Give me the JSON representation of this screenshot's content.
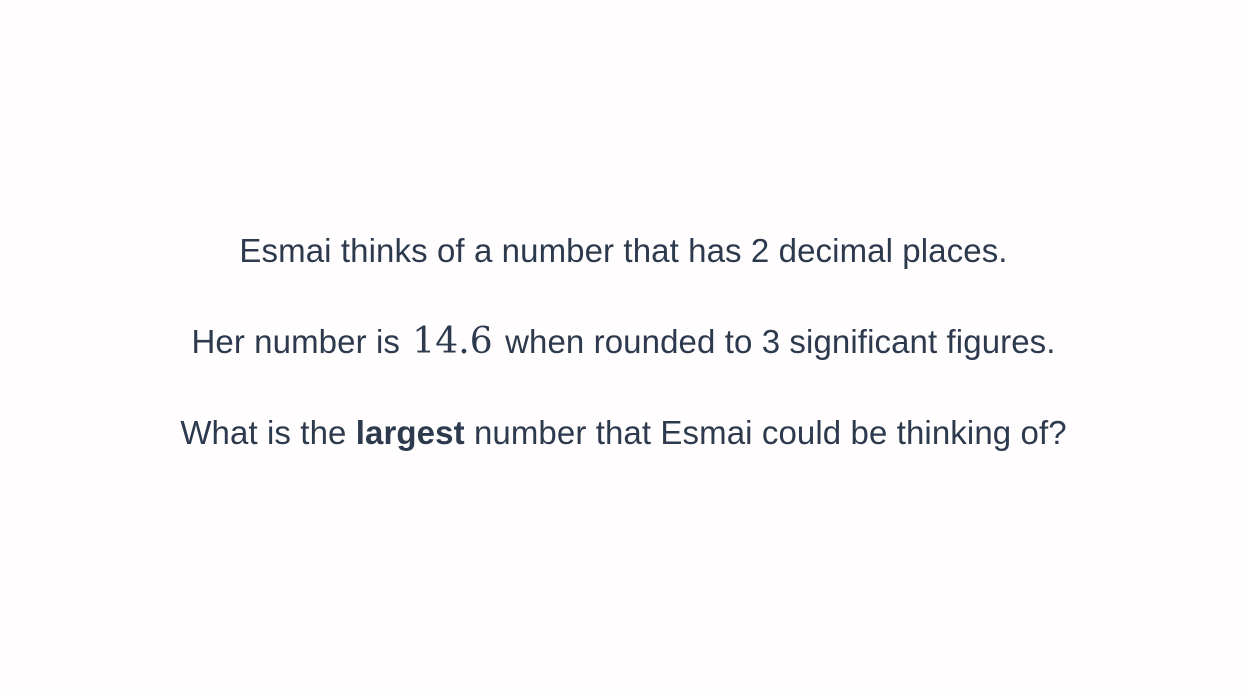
{
  "question": {
    "line1": "Esmai thinks of a number that has 2 decimal places.",
    "line2": {
      "before": "Her number is ",
      "math": "14.6",
      "after": " when rounded to 3 significant figures."
    },
    "line3": {
      "before": "What is the ",
      "bold": "largest",
      "after": " number that Esmai could be thinking of?"
    }
  },
  "colors": {
    "background": "#fffdfd",
    "text": "#2d3a4e"
  }
}
